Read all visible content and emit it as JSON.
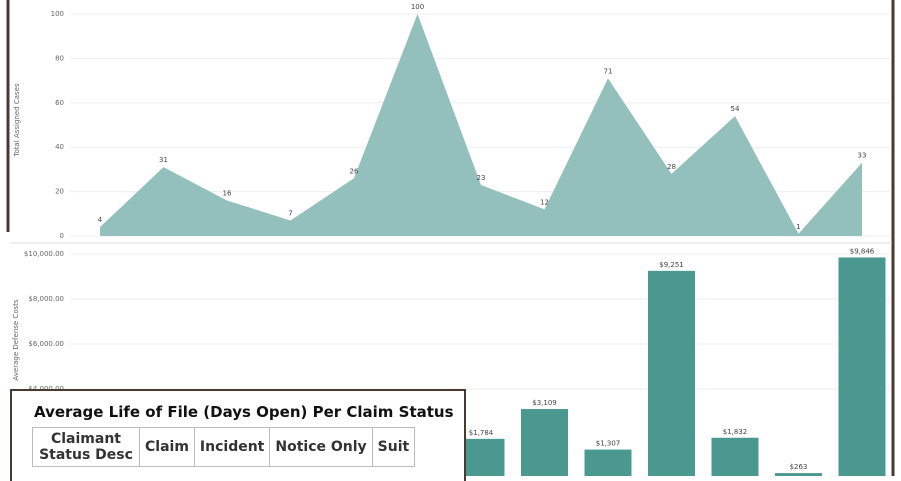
{
  "chart_data": [
    {
      "type": "area",
      "y_label": "Total Assigned Cases",
      "color": "#93c0bc",
      "values": [
        4,
        31,
        16,
        7,
        26,
        100,
        23,
        12,
        71,
        28,
        54,
        1,
        33
      ],
      "ylim": [
        0,
        100
      ],
      "yticks": [
        0,
        20,
        40,
        60,
        80,
        100
      ],
      "grid": true
    },
    {
      "type": "bar",
      "y_label": "Average Defense Costs",
      "color": "#4a9890",
      "values": [
        null,
        null,
        null,
        null,
        null,
        null,
        1784,
        3109,
        1307,
        9251,
        1832,
        263,
        9846
      ],
      "value_labels": [
        null,
        null,
        null,
        null,
        null,
        null,
        "$1,784",
        "$3,109",
        "$1,307",
        "$9,251",
        "$1,832",
        "$263",
        "$9,846"
      ],
      "ylim": [
        0,
        10000
      ],
      "yticks": [
        {
          "value": 4000,
          "label": "$4,000.00"
        },
        {
          "value": 6000,
          "label": "$6,000.00"
        },
        {
          "value": 8000,
          "label": "$8,000.00"
        },
        {
          "value": 10000,
          "label": "$10,000.00"
        }
      ],
      "grid": true
    }
  ],
  "table": {
    "title": "Average Life of File (Days Open) Per Claim Status",
    "headers": [
      "Claimant Status Desc",
      "Claim",
      "Incident",
      "Notice Only",
      "Suit"
    ]
  }
}
